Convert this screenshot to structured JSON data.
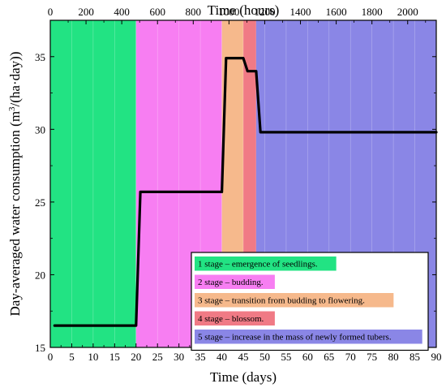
{
  "chart_data": {
    "type": "line",
    "xlabel": "Time (days)",
    "x2label": "Time (hours)",
    "ylabel_main": "Day-averaged water consumption (m",
    "ylabel_sup": "3",
    "ylabel_tail": "/(ha·day))",
    "xlim": [
      0,
      90
    ],
    "x2lim": [
      0,
      2160
    ],
    "ylim": [
      15,
      37.5
    ],
    "x_ticks": [
      0,
      5,
      10,
      15,
      20,
      25,
      30,
      35,
      40,
      45,
      50,
      55,
      60,
      65,
      70,
      75,
      80,
      85,
      90
    ],
    "x2_ticks": [
      0,
      200,
      400,
      600,
      800,
      1000,
      1200,
      1400,
      1600,
      1800,
      2000
    ],
    "y_ticks": [
      15,
      20,
      25,
      30,
      35
    ],
    "stages": [
      {
        "label": "1 stage – emergence of seedlings.",
        "start": 0,
        "end": 20,
        "color": "#22e383"
      },
      {
        "label": "2 stage – budding.",
        "start": 20,
        "end": 40,
        "color": "#f77ef2"
      },
      {
        "label": "3 stage – transition from budding to flowering.",
        "start": 40,
        "end": 45,
        "color": "#f6b98c"
      },
      {
        "label": "4 stage – blossom.",
        "start": 45,
        "end": 48,
        "color": "#f07a85"
      },
      {
        "label": "5 stage – increase in the mass of newly formed tubers.",
        "start": 48,
        "end": 90,
        "color": "#8a86e6"
      }
    ],
    "series": [
      {
        "x": [
          1,
          20,
          21,
          40,
          41,
          45,
          46,
          48,
          49,
          90
        ],
        "y": [
          16.5,
          16.5,
          25.7,
          25.7,
          34.9,
          34.9,
          34.0,
          34.0,
          29.8,
          29.8
        ]
      }
    ]
  }
}
